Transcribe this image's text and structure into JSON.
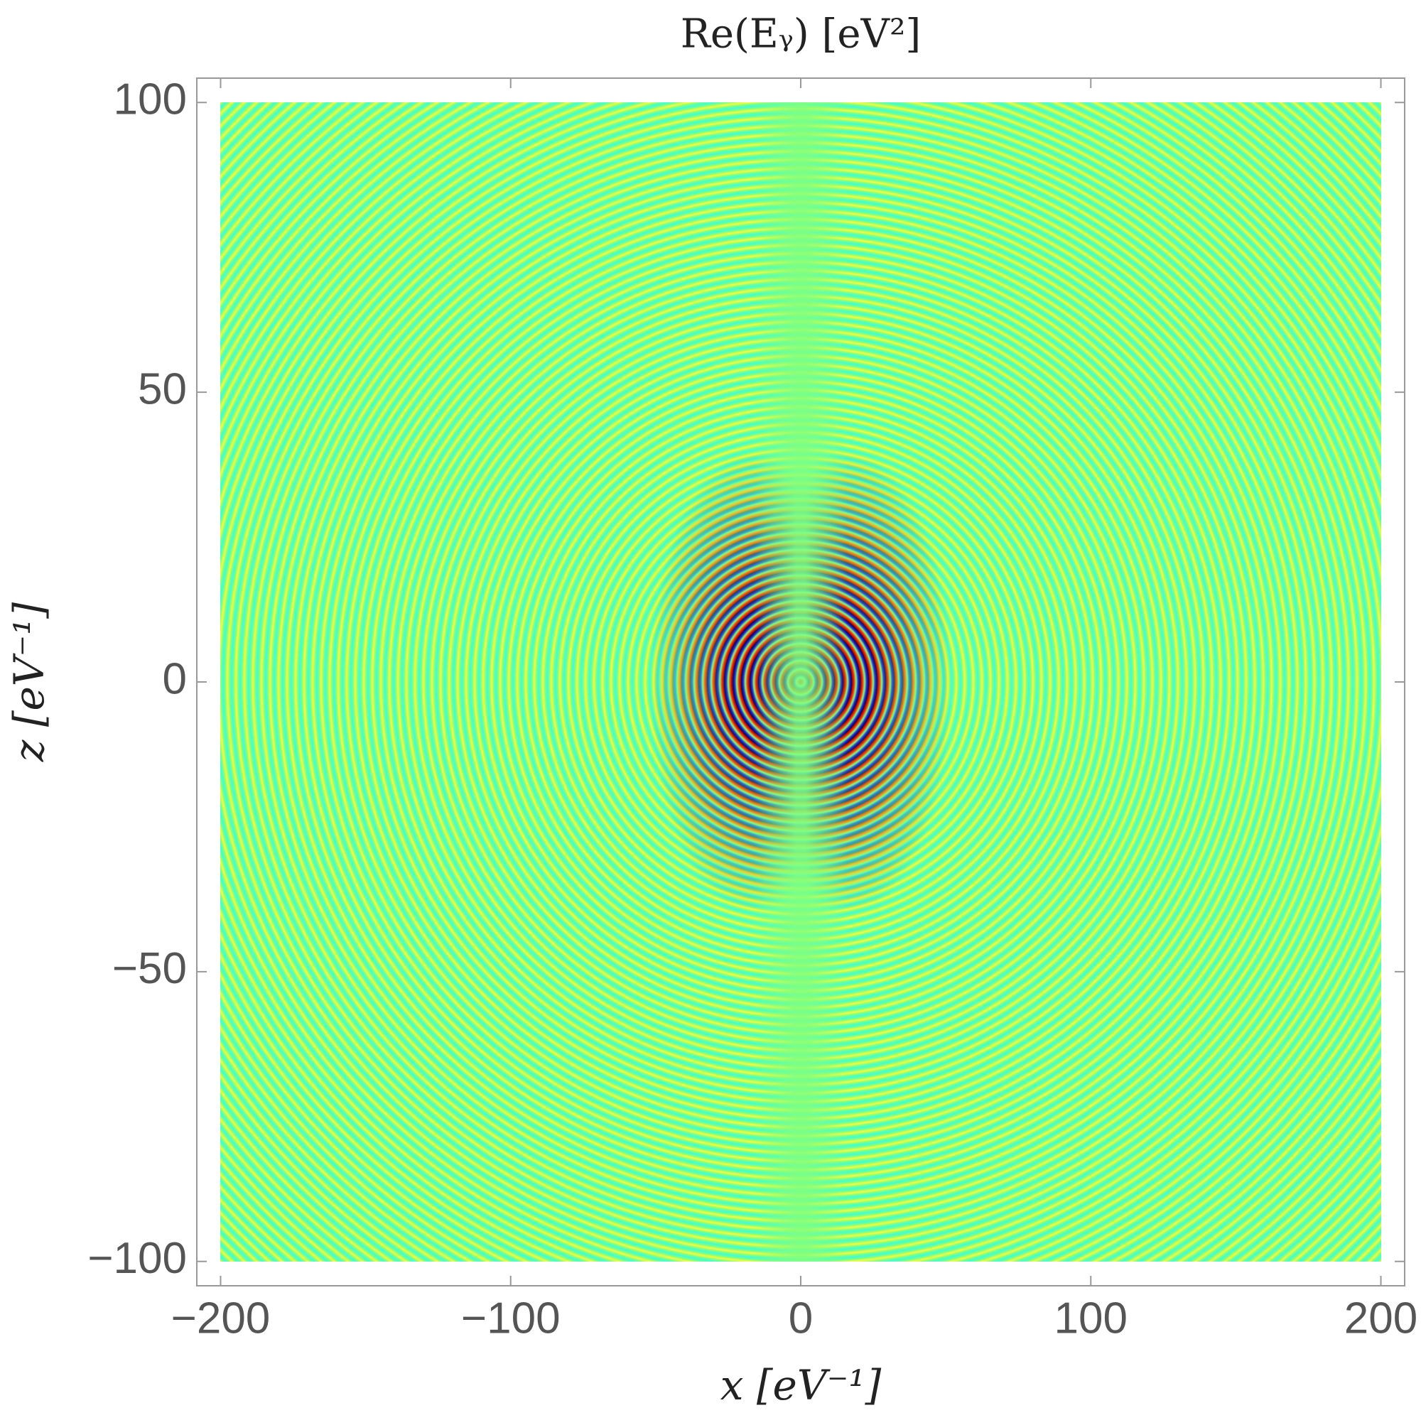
{
  "chart_data": {
    "type": "density",
    "title": "Re(Eᵧ) [eV²]",
    "x_label": "x [eV⁻¹]",
    "y_label": "z [eV⁻¹]",
    "xlim": [
      -208.2,
      208.2
    ],
    "ylim": [
      -104.2,
      104.2
    ],
    "xticks": [
      {
        "value": -200,
        "label": "−200"
      },
      {
        "value": -100,
        "label": "−100"
      },
      0,
      100,
      200
    ],
    "yticks": [
      {
        "value": -100,
        "label": "−100"
      },
      {
        "value": -50,
        "label": "−50"
      },
      0,
      50,
      100
    ]
  }
}
